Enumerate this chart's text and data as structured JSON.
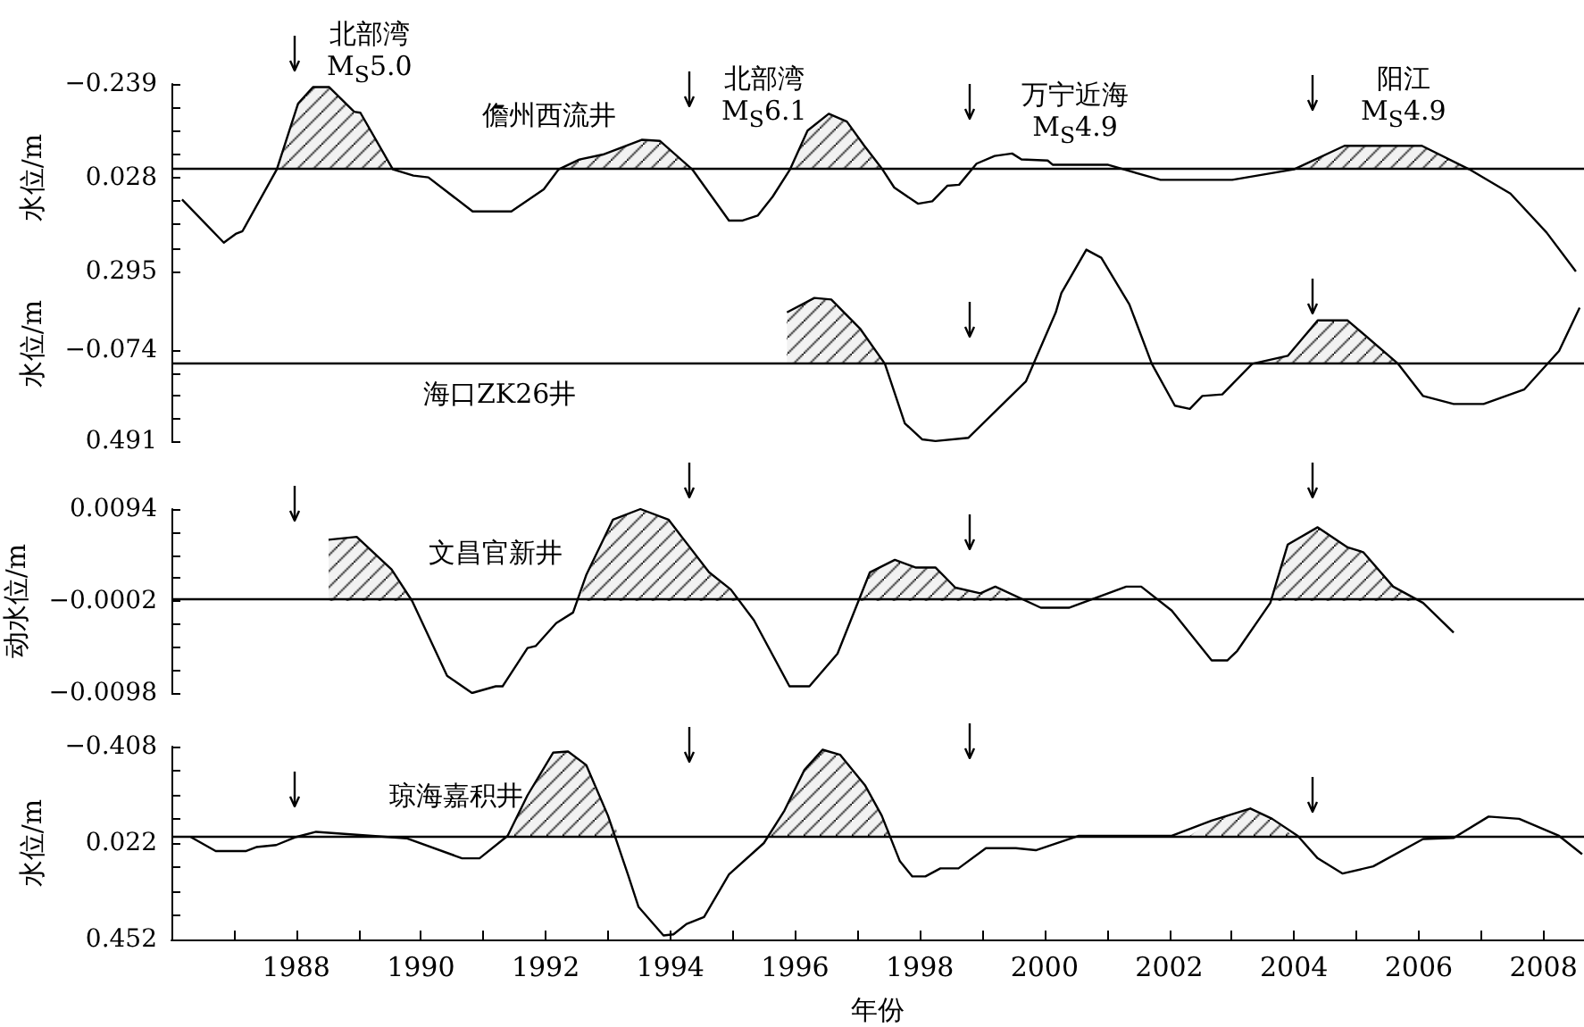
{
  "chart_data": [
    {
      "type": "line",
      "title": "儋州西流井",
      "ylabel": "水位/m",
      "tick_labels": "y",
      "xlim": [
        1986,
        2008.65
      ],
      "ylim": [
        0.295,
        -0.239
      ],
      "yticks": [
        {
          "value": -0.239,
          "label": "−0.239"
        },
        {
          "value": -0.17225,
          "label": null
        },
        {
          "value": -0.1055,
          "label": null
        },
        {
          "value": -0.03875,
          "label": null
        },
        0.028,
        {
          "value": 0.09475,
          "label": null
        },
        {
          "value": 0.1615,
          "label": null
        },
        {
          "value": 0.22825,
          "label": null
        },
        0.295
      ],
      "ref_lines": [
        {
          "axis": "y",
          "value": 0.004,
          "color": "#000000"
        }
      ],
      "annotations": [
        "北部湾\nM$_{S}$5.0",
        "北部湾\nM$_{S}$6.1",
        "万宁近海\nM$_{S}$4.9",
        "阳江\nM$_{S}$4.9"
      ],
      "series": [
        {
          "color": "#000000",
          "x": [
            1986.17,
            1986.84,
            1987.03,
            1987.14,
            1987.69,
            1988.03,
            1988.27,
            1988.53,
            1988.93,
            1989.03,
            1989.55,
            1989.88,
            1990.12,
            1990.83,
            1991.45,
            1991.97,
            1992.21,
            1992.54,
            1992.92,
            1993.54,
            1993.83,
            1994.35,
            1994.94,
            1995.16,
            1995.4,
            1995.64,
            1995.92,
            1996.2,
            1996.54,
            1996.83,
            1997.11,
            1997.4,
            1997.59,
            1997.97,
            1998.2,
            1998.44,
            1998.63,
            1998.91,
            1999.2,
            1999.48,
            1999.63,
            2000.05,
            2000.13,
            2001.01,
            2001.86,
            2003.01,
            2004.0,
            2004.81,
            2006.05,
            2006.81,
            2007.47,
            2008.05,
            2008.52
          ],
          "values": [
            0.09,
            0.213,
            0.188,
            0.18,
            0.004,
            -0.183,
            -0.23,
            -0.23,
            -0.16,
            -0.157,
            0.004,
            0.022,
            0.027,
            0.124,
            0.124,
            0.061,
            0.004,
            -0.024,
            -0.038,
            -0.08,
            -0.077,
            0.004,
            0.15,
            0.15,
            0.136,
            0.082,
            0.004,
            -0.106,
            -0.154,
            -0.132,
            -0.063,
            0.004,
            0.056,
            0.102,
            0.095,
            0.051,
            0.048,
            -0.012,
            -0.034,
            -0.041,
            -0.024,
            -0.021,
            -0.009,
            -0.009,
            0.034,
            0.034,
            0.004,
            -0.063,
            -0.063,
            0.004,
            0.073,
            0.184,
            0.295
          ]
        },
        {
          "type": "area",
          "color": "#000000",
          "x": [
            1987.69,
            1988.03,
            1988.27,
            1988.53,
            1988.93,
            1989.03,
            1989.55
          ],
          "values": [
            0.004,
            -0.183,
            -0.23,
            -0.23,
            -0.16,
            -0.157,
            0.004
          ]
        },
        {
          "type": "area",
          "color": "#000000",
          "x": [
            1992.21,
            1992.54,
            1992.92,
            1993.54,
            1993.83,
            1994.35
          ],
          "values": [
            0.004,
            -0.024,
            -0.038,
            -0.08,
            -0.077,
            0.004
          ]
        },
        {
          "type": "area",
          "color": "#000000",
          "x": [
            1995.92,
            1996.2,
            1996.54,
            1996.83,
            1997.11,
            1997.4
          ],
          "values": [
            0.004,
            -0.106,
            -0.154,
            -0.132,
            -0.063,
            0.004
          ]
        },
        {
          "type": "area",
          "color": "#000000",
          "x": [
            2004.0,
            2004.81,
            2006.05,
            2006.81
          ],
          "values": [
            0.004,
            -0.063,
            -0.063,
            0.004
          ]
        }
      ]
    },
    {
      "type": "line",
      "title": "海口ZK26井",
      "ylabel": "水位/m",
      "tick_labels": "y",
      "xlim": [
        1986,
        2008.65
      ],
      "ylim": [
        0.491,
        -0.72
      ],
      "yticks": [
        {
          "value": -0.074,
          "label": "−0.074"
        },
        {
          "value": 0.06725,
          "label": null
        },
        {
          "value": 0.2085,
          "label": null
        },
        {
          "value": 0.34975,
          "label": null
        },
        0.491
      ],
      "ref_lines": [
        {
          "axis": "y",
          "value": 0.01,
          "color": "#000000"
        }
      ],
      "series": [
        {
          "color": "#000000",
          "x": [
            1995.87,
            1996.31,
            1996.58,
            1997.04,
            1997.44,
            1997.76,
            1998.04,
            1998.25,
            1998.78,
            1999.7,
            2000.18,
            2000.27,
            2000.67,
            2000.91,
            2001.36,
            2001.72,
            2002.09,
            2002.33,
            2002.53,
            2002.85,
            2003.33,
            2003.9,
            2004.38,
            2004.86,
            2005.67,
            2006.07,
            2006.56,
            2007.04,
            2007.69,
            2008.25,
            2008.58
          ],
          "values": [
            -0.31,
            -0.4,
            -0.39,
            -0.21,
            0.01,
            0.38,
            0.48,
            0.49,
            0.47,
            0.12,
            -0.31,
            -0.43,
            -0.7,
            -0.65,
            -0.36,
            0.01,
            0.27,
            0.29,
            0.21,
            0.2,
            0.01,
            -0.04,
            -0.26,
            -0.26,
            0.01,
            0.21,
            0.26,
            0.26,
            0.17,
            -0.07,
            -0.34
          ]
        },
        {
          "type": "area",
          "color": "#000000",
          "x": [
            1995.87,
            1995.87,
            1996.31,
            1996.58,
            1997.04,
            1997.44
          ],
          "values": [
            0.01,
            -0.31,
            -0.4,
            -0.39,
            -0.21,
            0.01
          ]
        },
        {
          "type": "area",
          "color": "#000000",
          "x": [
            2003.33,
            2003.9,
            2004.38,
            2004.86,
            2005.67
          ],
          "values": [
            0.01,
            -0.04,
            -0.26,
            -0.26,
            0.01
          ]
        }
      ]
    },
    {
      "type": "line",
      "title": "文昌官新井",
      "ylabel": "动水位/m",
      "tick_labels": "y",
      "xlim": [
        1986,
        2008.65
      ],
      "ylim": [
        -0.0098,
        0.0094
      ],
      "yticks": [
        {
          "value": -0.0098,
          "label": "−0.0098"
        },
        {
          "value": -0.0074,
          "label": null
        },
        {
          "value": -0.005,
          "label": null
        },
        {
          "value": -0.0026,
          "label": null
        },
        {
          "value": -0.0002,
          "label": "−0.0002"
        },
        {
          "value": 0.0022,
          "label": null
        },
        {
          "value": 0.0046,
          "label": null
        },
        {
          "value": 0.007,
          "label": null
        },
        0.0094
      ],
      "ref_lines": [
        {
          "axis": "y",
          "value": -0.0002,
          "color": "#000000"
        }
      ],
      "series": [
        {
          "color": "#000000",
          "x": [
            1988.52,
            1988.97,
            1989.53,
            1989.86,
            1990.42,
            1990.82,
            1991.2,
            1991.31,
            1991.71,
            1991.84,
            1992.17,
            1992.44,
            1992.65,
            1993.08,
            1993.52,
            1993.97,
            1994.62,
            1994.97,
            1995.34,
            1995.91,
            1996.23,
            1996.68,
            1997.2,
            1997.6,
            1997.93,
            1998.25,
            1998.57,
            1998.97,
            1999.21,
            1999.94,
            2000.39,
            2001.31,
            2001.55,
            2002.04,
            2002.68,
            2002.93,
            2003.09,
            2003.62,
            2003.9,
            2004.38,
            2004.86,
            2005.11,
            2005.59,
            2006.07,
            2006.56
          ],
          "values": [
            0.0062,
            0.0065,
            0.0031,
            -0.0002,
            -0.008,
            -0.0098,
            -0.0091,
            -0.0091,
            -0.0051,
            -0.0049,
            -0.0025,
            -0.0014,
            0.0025,
            0.0083,
            0.0094,
            0.0083,
            0.0028,
            0.001,
            -0.0022,
            -0.0091,
            -0.0091,
            -0.0057,
            0.0028,
            0.0041,
            0.0033,
            0.0033,
            0.0012,
            0.0006,
            0.0013,
            -0.0009,
            -0.0009,
            0.0013,
            0.0013,
            -0.0012,
            -0.0064,
            -0.0064,
            -0.0054,
            -0.0004,
            0.0057,
            0.0075,
            0.0054,
            0.0049,
            0.0013,
            -0.0004,
            -0.0035
          ]
        },
        {
          "type": "area",
          "color": "#000000",
          "x": [
            1988.52,
            1988.52,
            1988.97,
            1989.53,
            1989.86
          ],
          "values": [
            -0.0002,
            0.0062,
            0.0065,
            0.0031,
            -0.0002
          ]
        },
        {
          "type": "area",
          "color": "#000000",
          "x": [
            1992.55,
            1992.65,
            1993.08,
            1993.52,
            1993.97,
            1994.62,
            1994.97,
            1995.1
          ],
          "values": [
            -0.0002,
            0.0025,
            0.0083,
            0.0094,
            0.0083,
            0.0028,
            0.001,
            -0.0002
          ]
        },
        {
          "type": "area",
          "color": "#000000",
          "x": [
            1997.0,
            1997.2,
            1997.6,
            1997.93,
            1998.25,
            1998.57,
            1998.97,
            1999.21,
            1999.5
          ],
          "values": [
            -0.0002,
            0.0028,
            0.0041,
            0.0033,
            0.0033,
            0.0012,
            0.0006,
            0.0013,
            -0.0002
          ]
        },
        {
          "type": "area",
          "color": "#000000",
          "x": [
            2003.65,
            2003.9,
            2004.38,
            2004.86,
            2005.11,
            2005.59,
            2005.95
          ],
          "values": [
            -0.0002,
            0.0057,
            0.0075,
            0.0054,
            0.0049,
            0.0013,
            -0.0002
          ]
        }
      ]
    },
    {
      "type": "line",
      "title": "琼海嘉积井",
      "ylabel": "水位/m",
      "xlabel": "年份",
      "xlim": [
        1986,
        2008.65
      ],
      "ylim": [
        0.452,
        -0.408
      ],
      "xticks": [
        {
          "value": 1987,
          "label": null
        },
        1988,
        {
          "value": 1989,
          "label": null
        },
        1990,
        {
          "value": 1991,
          "label": null
        },
        1992,
        {
          "value": 1993,
          "label": null
        },
        1994,
        {
          "value": 1995,
          "label": null
        },
        1996,
        {
          "value": 1997,
          "label": null
        },
        1998,
        {
          "value": 1999,
          "label": null
        },
        2000,
        {
          "value": 2001,
          "label": null
        },
        2002,
        {
          "value": 2003,
          "label": null
        },
        2004,
        {
          "value": 2005,
          "label": null
        },
        2006,
        {
          "value": 2007,
          "label": null
        },
        2008
      ],
      "yticks": [
        {
          "value": -0.408,
          "label": "−0.408"
        },
        {
          "value": -0.3005,
          "label": null
        },
        {
          "value": -0.193,
          "label": null
        },
        {
          "value": -0.0855,
          "label": null
        },
        0.022,
        {
          "value": 0.1295,
          "label": null
        },
        {
          "value": 0.237,
          "label": null
        },
        {
          "value": 0.3445,
          "label": null
        },
        0.452
      ],
      "ref_lines": [
        {
          "axis": "y",
          "value": -0.005,
          "color": "#000000"
        }
      ],
      "series": [
        {
          "color": "#000000",
          "x": [
            1986.31,
            1986.71,
            1987.19,
            1987.36,
            1987.68,
            1988.0,
            1988.32,
            1989.77,
            1990.66,
            1990.94,
            1991.39,
            1991.71,
            1992.12,
            1992.36,
            1992.65,
            1993.0,
            1993.33,
            1993.49,
            1993.89,
            1994.05,
            1994.26,
            1994.54,
            1994.94,
            1995.5,
            1995.83,
            1996.15,
            1996.44,
            1996.72,
            1997.12,
            1997.39,
            1997.68,
            1997.88,
            1998.09,
            1998.33,
            1998.62,
            1999.06,
            1999.54,
            1999.86,
            2000.55,
            2002.04,
            2002.68,
            2003.3,
            2003.65,
            2004.06,
            2004.38,
            2004.78,
            2005.27,
            2006.07,
            2006.56,
            2007.12,
            2007.61,
            2008.25,
            2008.62
          ],
          "values": [
            -0.005,
            0.058,
            0.058,
            0.04,
            0.031,
            -0.005,
            -0.028,
            0.001,
            0.09,
            0.09,
            -0.01,
            -0.191,
            -0.381,
            -0.386,
            -0.326,
            -0.1,
            0.171,
            0.307,
            0.434,
            0.429,
            0.383,
            0.352,
            0.162,
            0.022,
            -0.123,
            -0.304,
            -0.394,
            -0.372,
            -0.236,
            -0.1,
            0.103,
            0.171,
            0.171,
            0.135,
            0.135,
            0.045,
            0.045,
            0.054,
            -0.01,
            -0.01,
            -0.078,
            -0.132,
            -0.086,
            -0.01,
            0.09,
            0.158,
            0.126,
            0.004,
            -0.001,
            -0.096,
            -0.086,
            -0.01,
            0.072
          ]
        },
        {
          "type": "area",
          "color": "#000000",
          "x": [
            1991.38,
            1991.71,
            1992.12,
            1992.36,
            1992.65,
            1993.0,
            1993.2
          ],
          "values": [
            -0.005,
            -0.191,
            -0.381,
            -0.386,
            -0.326,
            -0.1,
            -0.005
          ]
        },
        {
          "type": "area",
          "color": "#000000",
          "x": [
            1995.6,
            1995.83,
            1996.15,
            1996.44,
            1996.72,
            1997.12,
            1997.39,
            1997.55
          ],
          "values": [
            -0.005,
            -0.123,
            -0.304,
            -0.394,
            -0.372,
            -0.236,
            -0.1,
            -0.005
          ]
        },
        {
          "type": "area",
          "color": "#000000",
          "x": [
            2002.3,
            2002.68,
            2003.3,
            2003.65,
            2004.0
          ],
          "values": [
            -0.005,
            -0.078,
            -0.132,
            -0.086,
            -0.005
          ]
        }
      ]
    }
  ]
}
